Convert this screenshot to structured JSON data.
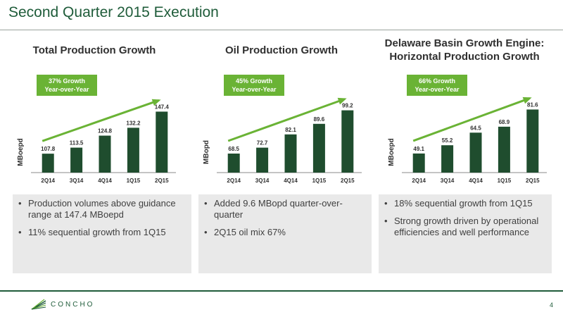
{
  "page": {
    "title": "Second Quarter 2015 Execution",
    "page_number": "4",
    "logo_text": "CONCHO"
  },
  "panels": [
    {
      "title": "Total Production Growth",
      "growth_line1": "37% Growth",
      "growth_line2": "Year-over-Year",
      "bullets": [
        "Production volumes above guidance range at 147.4 MBoepd",
        "11% sequential growth from 1Q15"
      ]
    },
    {
      "title": "Oil Production Growth",
      "growth_line1": "45% Growth",
      "growth_line2": "Year-over-Year",
      "bullets": [
        "Added 9.6 MBopd quarter-over-quarter",
        "2Q15 oil mix 67%"
      ]
    },
    {
      "title": "Delaware Basin Growth Engine: Horizontal Production Growth",
      "growth_line1": "66% Growth",
      "growth_line2": "Year-over-Year",
      "bullets": [
        "18% sequential growth from 1Q15",
        "Strong growth driven by operational efficiencies and well performance"
      ]
    }
  ],
  "colors": {
    "bar": "#1f4d2e",
    "accent_green": "#6ab335",
    "title_green": "#1f5c3a"
  },
  "chart_data": [
    {
      "type": "bar",
      "title": "Total Production Growth",
      "ylabel": "MBoepd",
      "categories": [
        "2Q14",
        "3Q14",
        "4Q14",
        "1Q15",
        "2Q15"
      ],
      "values": [
        107.8,
        113.5,
        124.8,
        132.2,
        147.4
      ],
      "data_labels": [
        "107.8",
        "113.5",
        "124.8",
        "132.2",
        "147.4"
      ],
      "annotation": "37% Growth Year-over-Year",
      "ylim": [
        90,
        155
      ]
    },
    {
      "type": "bar",
      "title": "Oil Production Growth",
      "ylabel": "MBopd",
      "categories": [
        "2Q14",
        "3Q14",
        "4Q14",
        "1Q15",
        "2Q15"
      ],
      "values": [
        68.5,
        72.7,
        82.1,
        89.6,
        99.2
      ],
      "data_labels": [
        "68.5",
        "72.7",
        "82.1",
        "89.6",
        "99.2"
      ],
      "annotation": "45% Growth Year-over-Year",
      "ylim": [
        55,
        104
      ]
    },
    {
      "type": "bar",
      "title": "Delaware Basin Growth Engine: Horizontal Production Growth",
      "ylabel": "MBoepd",
      "categories": [
        "2Q14",
        "3Q14",
        "4Q14",
        "1Q15",
        "2Q15"
      ],
      "values": [
        49.1,
        55.2,
        64.5,
        68.9,
        81.6
      ],
      "data_labels": [
        "49.1",
        "55.2",
        "64.5",
        "68.9",
        "81.6"
      ],
      "annotation": "66% Growth Year-over-Year",
      "ylim": [
        35,
        86
      ]
    }
  ]
}
